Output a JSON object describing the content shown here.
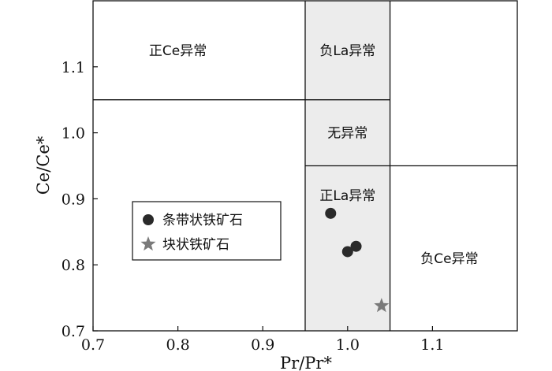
{
  "chart_data": {
    "type": "scatter",
    "xlabel": "Pr/Pr*",
    "ylabel": "Ce/Ce*",
    "xlim": [
      0.7,
      1.2
    ],
    "ylim": [
      0.7,
      1.2
    ],
    "x_ticks": [
      "0.7",
      "0.8",
      "0.9",
      "1.0",
      "1.1"
    ],
    "y_ticks": [
      "0.7",
      "0.8",
      "0.9",
      "1.0",
      "1.1"
    ],
    "grid": false,
    "legend_position": "center-left",
    "colors": {
      "frame": "#111111",
      "shaded_band": "#ececec",
      "circle_marker": "#2a2a2a",
      "star_marker": "#7a7a7a"
    },
    "regions": [
      {
        "label": "正Ce异常",
        "x_range": [
          0.7,
          0.95
        ],
        "y_range": [
          1.05,
          1.2
        ],
        "anchor": [
          0.8,
          1.125
        ]
      },
      {
        "label": "负La异常",
        "x_range": [
          0.95,
          1.05
        ],
        "y_range": [
          1.05,
          1.2
        ],
        "anchor": [
          1.0,
          1.125
        ]
      },
      {
        "label": "无异常",
        "x_range": [
          0.95,
          1.05
        ],
        "y_range": [
          0.95,
          1.05
        ],
        "anchor": [
          1.0,
          1.0
        ]
      },
      {
        "label": "正La异常",
        "x_range": [
          0.95,
          1.05
        ],
        "y_range": [
          0.7,
          0.95
        ],
        "anchor": [
          1.0,
          0.905
        ]
      },
      {
        "label": "负Ce异常",
        "x_range": [
          1.05,
          1.2
        ],
        "y_range": [
          0.7,
          0.95
        ],
        "anchor": [
          1.12,
          0.81
        ]
      }
    ],
    "series": [
      {
        "name": "条带状铁矿石",
        "marker": "circle",
        "points": [
          [
            0.98,
            0.878
          ],
          [
            1.0,
            0.82
          ],
          [
            1.01,
            0.828
          ]
        ]
      },
      {
        "name": "块状铁矿石",
        "marker": "star",
        "points": [
          [
            1.04,
            0.738
          ]
        ]
      }
    ]
  }
}
